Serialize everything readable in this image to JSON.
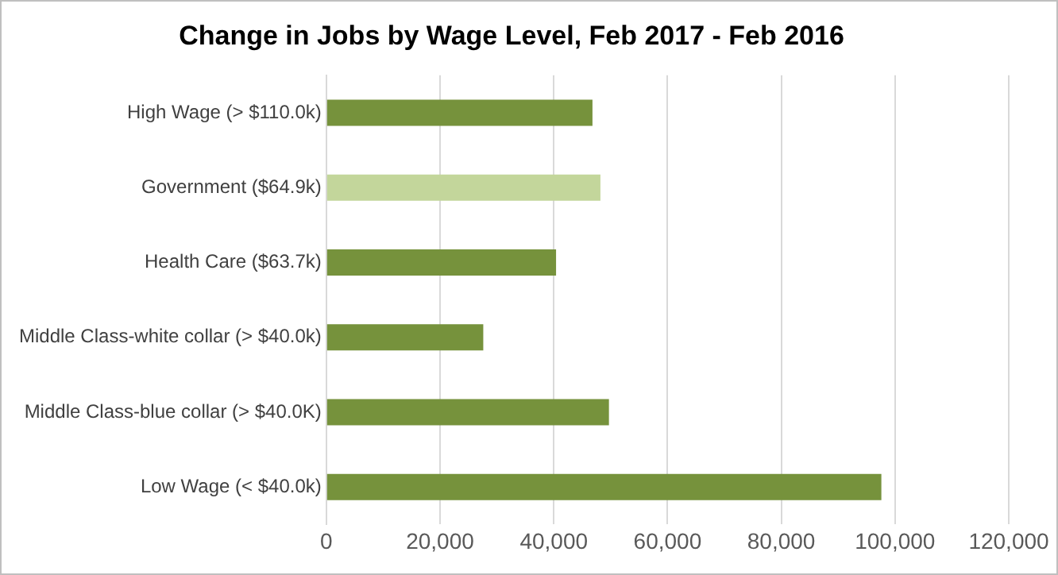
{
  "chart_data": {
    "type": "bar",
    "orientation": "horizontal",
    "title": "Change in Jobs by Wage Level, Feb 2017 - Feb 2016",
    "categories": [
      "High Wage (> $110.0k)",
      "Government ($64.9k)",
      "Health Care ($63.7k)",
      "Middle Class-white collar (> $40.0k)",
      "Middle Class-blue collar (> $40.0K)",
      "Low Wage (< $40.0k)"
    ],
    "values": [
      46800,
      48200,
      40400,
      27600,
      49700,
      97600
    ],
    "colors": [
      "#76923c",
      "#c3d69b",
      "#76923c",
      "#76923c",
      "#76923c",
      "#76923c"
    ],
    "xlim": [
      0,
      120000
    ],
    "xticks": [
      0,
      {
        "value": 20000,
        "label": "20,000"
      },
      {
        "value": 40000,
        "label": "40,000"
      },
      {
        "value": 60000,
        "label": "60,000"
      },
      {
        "value": 80000,
        "label": "80,000"
      },
      {
        "value": 100000,
        "label": "100,000"
      },
      {
        "value": 120000,
        "label": "120,000"
      }
    ],
    "grid": "x",
    "legend": false
  }
}
